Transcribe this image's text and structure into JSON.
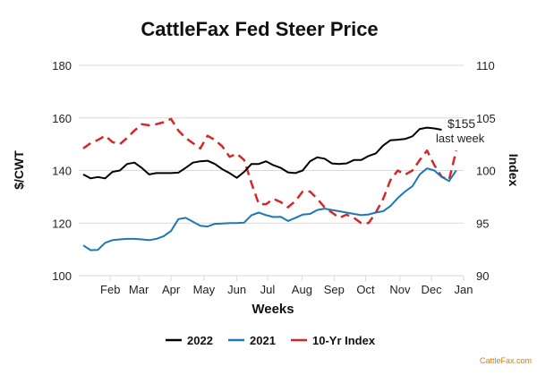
{
  "chart_data": {
    "type": "line",
    "title": "CattleFax Fed Steer Price",
    "xlabel": "Weeks",
    "ylabel": "$/CWT",
    "y2label": "Index",
    "ylim": [
      100,
      180
    ],
    "y2lim": [
      90,
      110
    ],
    "yticks": [
      100,
      120,
      140,
      160,
      180
    ],
    "y2ticks": [
      90,
      95,
      100,
      105,
      110
    ],
    "xlim": [
      1,
      53
    ],
    "xticks": [
      {
        "label": "Feb",
        "week": 4.7
      },
      {
        "label": "Mar",
        "week": 8.6
      },
      {
        "label": "Apr",
        "week": 13
      },
      {
        "label": "May",
        "week": 17.5
      },
      {
        "label": "Jun",
        "week": 22
      },
      {
        "label": "Jul",
        "week": 26.2
      },
      {
        "label": "Aug",
        "week": 30.9
      },
      {
        "label": "Sep",
        "week": 35.3
      },
      {
        "label": "Oct",
        "week": 39.6
      },
      {
        "label": "Nov",
        "week": 44.3
      },
      {
        "label": "Dec",
        "week": 48.6
      },
      {
        "label": "Jan",
        "week": 53
      }
    ],
    "grid": true,
    "legend": "bottom",
    "series": [
      {
        "name": "2022",
        "axis": "left",
        "color": "#000000",
        "dash": false,
        "values": [
          138.5,
          137,
          137.5,
          137,
          139.5,
          140,
          142.5,
          143,
          141,
          138.5,
          139,
          139,
          139,
          139.2,
          141,
          143,
          143.5,
          143.7,
          142.5,
          140.5,
          139,
          137.2,
          139.5,
          142.5,
          142.5,
          143.5,
          142,
          141,
          139.3,
          139,
          140,
          143.5,
          145,
          144.5,
          142.7,
          142.5,
          142.7,
          144,
          144,
          145.5,
          146.5,
          149.5,
          151.5,
          151.7,
          152,
          153,
          155.8,
          156.3,
          156,
          155.5
        ]
      },
      {
        "name": "2021",
        "axis": "left",
        "color": "#1f77b4",
        "dash": false,
        "values": [
          111.5,
          109.7,
          109.8,
          112.5,
          113.5,
          113.8,
          114,
          114,
          113.8,
          113.5,
          114,
          115,
          117,
          121.5,
          122,
          120.5,
          119,
          118.7,
          119.7,
          119.8,
          120,
          120,
          120.2,
          123,
          124,
          123,
          122.3,
          122.4,
          120.8,
          122,
          123.2,
          123.5,
          125,
          125.5,
          125,
          124.5,
          124,
          123.5,
          123,
          123.3,
          124,
          124.5,
          126.5,
          129.5,
          132,
          134,
          138.5,
          140.8,
          140,
          137.5,
          136,
          140
        ]
      },
      {
        "name": "10-Yr Index",
        "axis": "right",
        "color": "#d62728",
        "dash": true,
        "values": [
          102.1,
          102.6,
          102.9,
          103.3,
          102.7,
          102.5,
          103.1,
          103.8,
          104.4,
          104.3,
          104.4,
          104.6,
          104.9,
          103.8,
          103.1,
          102.6,
          102.1,
          103.3,
          102.9,
          102.3,
          101.3,
          101.6,
          101.0,
          98.8,
          96.8,
          96.8,
          97.3,
          97.0,
          96.5,
          97.1,
          98.0,
          98.0,
          97.3,
          96.5,
          96.0,
          95.5,
          95.8,
          95.5,
          95.0,
          95.0,
          96.0,
          97.3,
          99.1,
          100.0,
          99.6,
          100.0,
          101.0,
          101.9,
          100.5,
          99.4,
          99.1,
          101.9
        ]
      }
    ],
    "annotations": [
      {
        "line1": "$155",
        "line2": "last week"
      }
    ]
  },
  "source": "CattleFax.com",
  "colors": {
    "source": "#e07b00",
    "grid": "#d9d9d9"
  }
}
